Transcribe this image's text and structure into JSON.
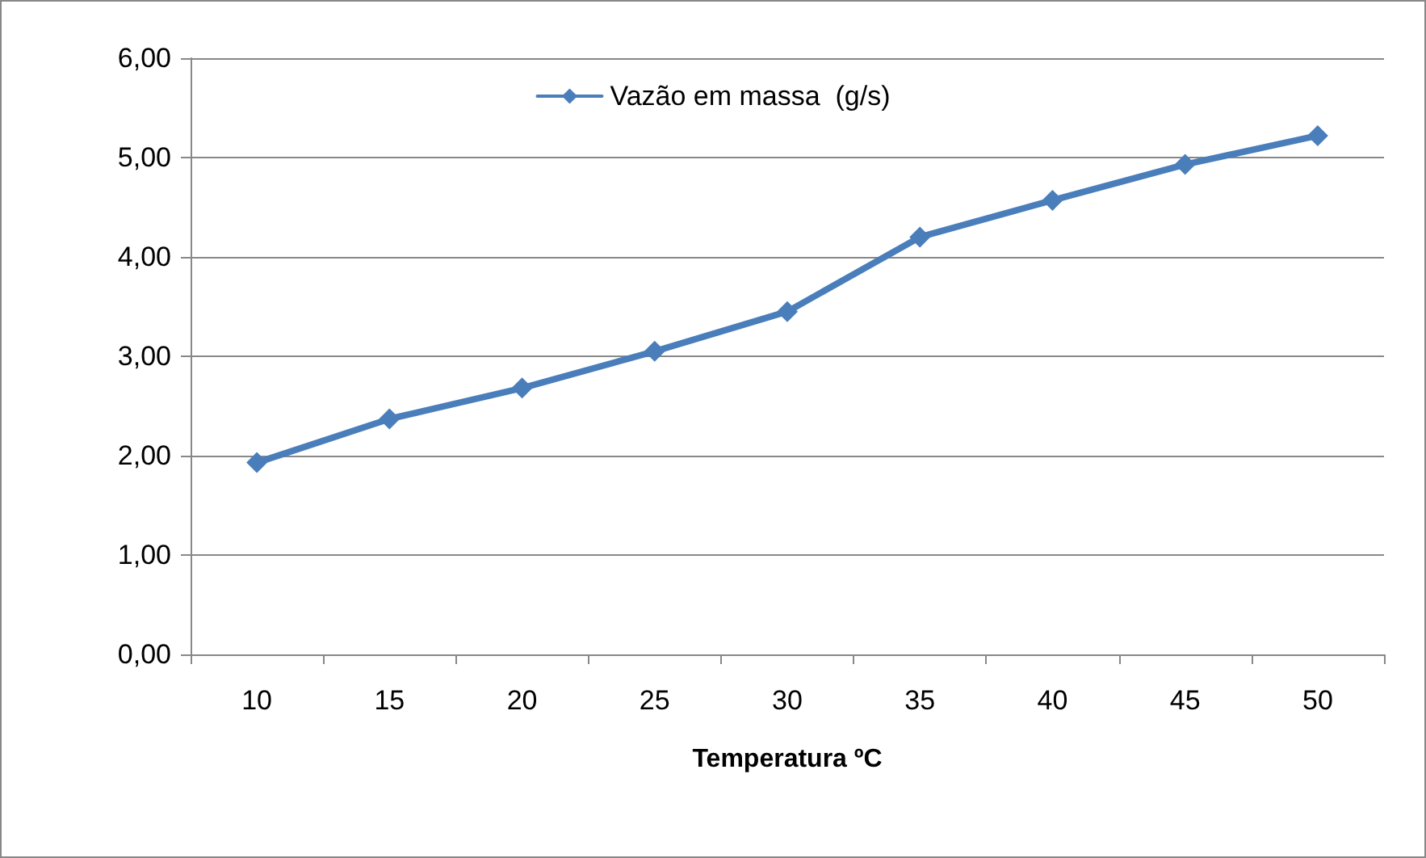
{
  "chart_data": {
    "type": "line",
    "xlabel": "Temperatura ºC",
    "categories": [
      "10",
      "15",
      "20",
      "25",
      "30",
      "35",
      "40",
      "45",
      "50"
    ],
    "series": [
      {
        "name": "Vazão em massa  (g/s)",
        "color": "#4a7ebb",
        "values": [
          1.93,
          2.37,
          2.68,
          3.05,
          3.45,
          4.2,
          4.57,
          4.93,
          5.22
        ]
      }
    ],
    "ylim": [
      0,
      6
    ],
    "yticks": [
      {
        "value": 0,
        "label": "0,00"
      },
      {
        "value": 1,
        "label": "1,00"
      },
      {
        "value": 2,
        "label": "2,00"
      },
      {
        "value": 3,
        "label": "3,00"
      },
      {
        "value": 4,
        "label": "4,00"
      },
      {
        "value": 5,
        "label": "5,00"
      },
      {
        "value": 6,
        "label": "6,00"
      }
    ],
    "grid": "y",
    "legend": "top",
    "marker": "diamond",
    "line_style": "solid"
  }
}
